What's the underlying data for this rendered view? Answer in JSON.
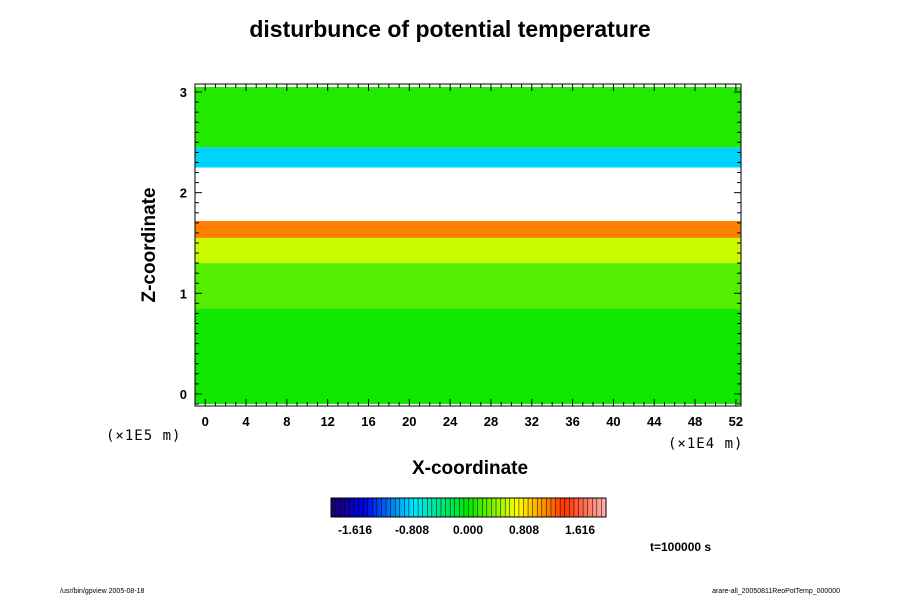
{
  "chart_data": {
    "type": "heatmap",
    "title": "disturbunce of potential temperature",
    "xlabel": "X-coordinate",
    "ylabel": "Z-coordinate",
    "x_unit": "(×1E4 m)",
    "y_unit": "(×1E5 m)",
    "xlim": [
      -1,
      52.5
    ],
    "ylim": [
      -0.12,
      3.08
    ],
    "x_ticks": [
      "0",
      "4",
      "8",
      "12",
      "16",
      "20",
      "24",
      "28",
      "32",
      "36",
      "40",
      "44",
      "48",
      "52"
    ],
    "y_ticks": [
      "0",
      "1",
      "2",
      "3"
    ],
    "x_tick_values": [
      0,
      4,
      8,
      12,
      16,
      20,
      24,
      28,
      32,
      36,
      40,
      44,
      48,
      52
    ],
    "y_tick_values": [
      0,
      1,
      2,
      3
    ],
    "colorbar_ticks": [
      "-1.616",
      "-0.808",
      "0.000",
      "0.808",
      "1.616"
    ],
    "colorbar_range": [
      -2.1,
      2.1
    ],
    "time_label": "t=100000 s",
    "bands": [
      {
        "z": [
          -0.1,
          0.85
        ],
        "value": 0.05
      },
      {
        "z": [
          0.85,
          1.3
        ],
        "value": 0.25
      },
      {
        "z": [
          1.3,
          1.55
        ],
        "value": 0.6
      },
      {
        "z": [
          1.55,
          1.72
        ],
        "value": 1.2
      },
      {
        "z": [
          1.72,
          2.25
        ],
        "value": null
      },
      {
        "z": [
          2.25,
          2.45
        ],
        "value": -0.9
      },
      {
        "z": [
          2.45,
          3.05
        ],
        "value": 0.1
      }
    ]
  },
  "footer": {
    "left": "/usr/bin/gpview 2005-08-18",
    "right": "arare-all_20050811ReoPotTemp_000000"
  }
}
